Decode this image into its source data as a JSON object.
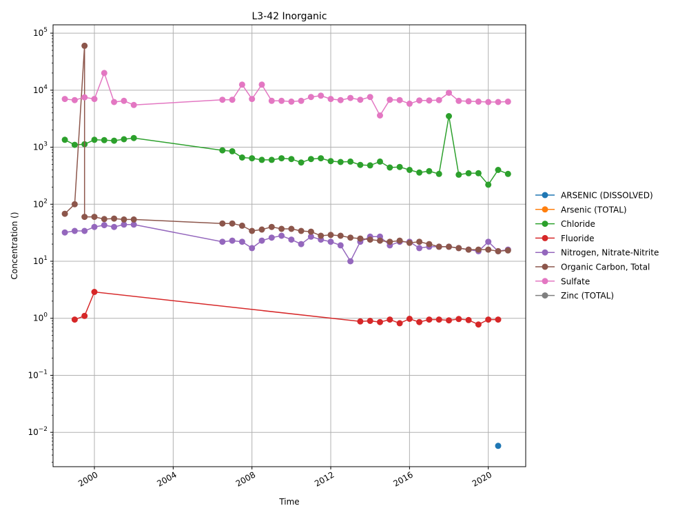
{
  "chart_data": {
    "type": "line",
    "title": "L3-42 Inorganic",
    "xlabel": "Time",
    "ylabel": "Concentration ()",
    "yscale": "log",
    "xlim": [
      1997.9,
      2021.9
    ],
    "ylim": [
      0.0025,
      140000
    ],
    "grid": true,
    "legend_position": "outside-right",
    "x_ticks": [
      "2000",
      "2004",
      "2008",
      "2012",
      "2016",
      "2020"
    ],
    "x_tick_values": [
      2000,
      2004,
      2008,
      2012,
      2016,
      2020
    ],
    "y_ticks": [
      "10^-2",
      "10^-1",
      "10^0",
      "10^1",
      "10^2",
      "10^3",
      "10^4",
      "10^5"
    ],
    "series": [
      {
        "name": "ARSENIC (DISSOLVED)",
        "color": "#1f77b4",
        "x": [
          2020.5
        ],
        "y": [
          0.0058
        ]
      },
      {
        "name": "Arsenic (TOTAL)",
        "color": "#ff7f0e",
        "x": [],
        "y": []
      },
      {
        "name": "Chloride",
        "color": "#2ca02c",
        "x": [
          1998.5,
          1999.0,
          1999.5,
          2000.0,
          2000.5,
          2001.0,
          2001.5,
          2002.0,
          2006.5,
          2007.0,
          2007.5,
          2008.0,
          2008.5,
          2009.0,
          2009.5,
          2010.0,
          2010.5,
          2011.0,
          2011.5,
          2012.0,
          2012.5,
          2013.0,
          2013.5,
          2014.0,
          2014.5,
          2015.0,
          2015.5,
          2016.0,
          2016.5,
          2017.0,
          2017.5,
          2018.0,
          2018.5,
          2019.0,
          2019.5,
          2020.0,
          2020.5,
          2021.0
        ],
        "y": [
          1350,
          1100,
          1130,
          1350,
          1330,
          1300,
          1380,
          1450,
          880,
          850,
          660,
          640,
          600,
          600,
          640,
          620,
          540,
          620,
          640,
          570,
          550,
          560,
          490,
          480,
          560,
          440,
          450,
          400,
          360,
          380,
          340,
          3500,
          330,
          350,
          350,
          220,
          400,
          340
        ]
      },
      {
        "name": "Fluoride",
        "color": "#d62728",
        "x": [
          1999.0,
          1999.5,
          2000.0,
          2013.5,
          2014.0,
          2014.5,
          2015.0,
          2015.5,
          2016.0,
          2016.5,
          2017.0,
          2017.5,
          2018.0,
          2018.5,
          2019.0,
          2019.5,
          2020.0,
          2020.5
        ],
        "y": [
          0.95,
          1.1,
          2.9,
          0.88,
          0.9,
          0.86,
          0.95,
          0.82,
          0.98,
          0.86,
          0.95,
          0.95,
          0.92,
          0.97,
          0.93,
          0.78,
          0.95,
          0.95
        ]
      },
      {
        "name": "Nitrogen, Nitrate-Nitrite",
        "color": "#9467bd",
        "x": [
          1998.5,
          1999.0,
          1999.5,
          2000.0,
          2000.5,
          2001.0,
          2001.5,
          2002.0,
          2006.5,
          2007.0,
          2007.5,
          2008.0,
          2008.5,
          2009.0,
          2009.5,
          2010.0,
          2010.5,
          2011.0,
          2011.5,
          2012.0,
          2012.5,
          2013.0,
          2013.5,
          2014.0,
          2014.5,
          2015.0,
          2015.5,
          2016.0,
          2016.5,
          2017.0,
          2017.5,
          2018.0,
          2018.5,
          2019.0,
          2019.5,
          2020.0,
          2020.5,
          2021.0
        ],
        "y": [
          32,
          34,
          34,
          40,
          43,
          40,
          44,
          44,
          22,
          23,
          22,
          17,
          23,
          26,
          28,
          24,
          20,
          27,
          24,
          22,
          19,
          10,
          22,
          27,
          27,
          19,
          22,
          22,
          17,
          18,
          18,
          18,
          17,
          16,
          15,
          22,
          15,
          16
        ]
      },
      {
        "name": "Organic Carbon, Total",
        "color": "#8c564b",
        "x": [
          1998.5,
          1999.0,
          1999.5,
          1999.5,
          2000.0,
          2000.5,
          2001.0,
          2001.5,
          2002.0,
          2006.5,
          2007.0,
          2007.5,
          2008.0,
          2008.5,
          2009.0,
          2009.5,
          2010.0,
          2010.5,
          2011.0,
          2011.5,
          2012.0,
          2012.5,
          2013.0,
          2013.5,
          2014.0,
          2014.5,
          2015.0,
          2015.5,
          2016.0,
          2016.5,
          2017.0,
          2017.5,
          2018.0,
          2018.5,
          2019.0,
          2019.5,
          2020.0,
          2020.5,
          2021.0
        ],
        "y": [
          68,
          100,
          60000,
          60,
          60,
          55,
          56,
          54,
          54,
          46,
          46,
          42,
          34,
          36,
          40,
          37,
          37,
          34,
          33,
          28,
          29,
          28,
          26,
          25,
          24,
          23,
          22,
          23,
          21,
          22,
          20,
          18,
          18,
          17,
          16,
          16,
          16,
          15,
          15.5
        ]
      },
      {
        "name": "Sulfate",
        "color": "#e377c2",
        "x": [
          1998.5,
          1999.0,
          1999.5,
          2000.0,
          2000.5,
          2001.0,
          2001.5,
          2002.0,
          2006.5,
          2007.0,
          2007.5,
          2008.0,
          2008.5,
          2009.0,
          2009.5,
          2010.0,
          2010.5,
          2011.0,
          2011.5,
          2012.0,
          2012.5,
          2013.0,
          2013.5,
          2014.0,
          2014.5,
          2015.0,
          2015.5,
          2016.0,
          2016.5,
          2017.0,
          2017.5,
          2018.0,
          2018.5,
          2019.0,
          2019.5,
          2020.0,
          2020.5,
          2021.0
        ],
        "y": [
          7000,
          6700,
          7500,
          7000,
          20000,
          6200,
          6500,
          5500,
          6800,
          6800,
          12500,
          7000,
          12500,
          6500,
          6500,
          6300,
          6500,
          7600,
          8000,
          7000,
          6700,
          7300,
          6800,
          7600,
          3600,
          6800,
          6700,
          5800,
          6600,
          6600,
          6700,
          9000,
          6500,
          6400,
          6300,
          6200,
          6200,
          6300
        ]
      },
      {
        "name": "Zinc (TOTAL)",
        "color": "#7f7f7f",
        "x": [],
        "y": []
      }
    ]
  }
}
